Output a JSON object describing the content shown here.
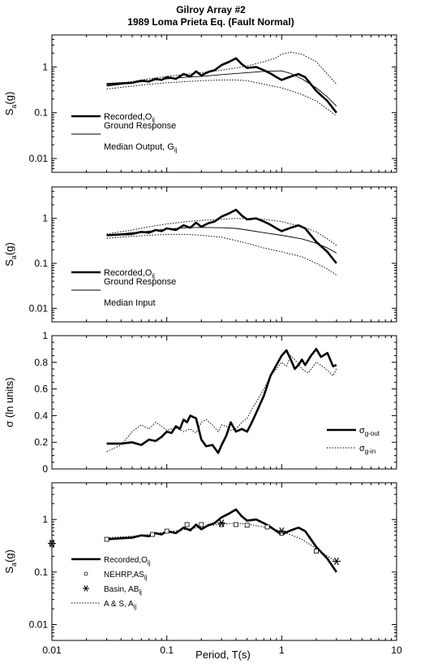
{
  "figure": {
    "title_line1": "Gilroy Array #2",
    "title_line2": "1989 Loma Prieta Eq. (Fault Normal)",
    "xlabel": "Period, T(s)",
    "x_ticks": [
      "0.01",
      "0.1",
      "1",
      "10"
    ]
  },
  "chart_data": [
    {
      "type": "line",
      "xscale": "log",
      "yscale": "log",
      "xlim": [
        0.01,
        10
      ],
      "ylim": [
        0.005,
        5
      ],
      "ylabel": "S",
      "ylabel_sub": "a",
      "ylabel_tail": "(g)",
      "y_ticks": [
        "0.01",
        "0.1",
        "1"
      ],
      "legend": [
        {
          "label": "Recorded,O",
          "sub": "ij",
          "style": "thick"
        },
        {
          "label": "Ground Response",
          "label2": "Median Output, G",
          "sub": "ij",
          "style": "thin"
        }
      ],
      "series": [
        {
          "name": "Recorded",
          "style": "thick",
          "x": [
            0.03,
            0.04,
            0.05,
            0.06,
            0.07,
            0.08,
            0.09,
            0.1,
            0.12,
            0.14,
            0.16,
            0.18,
            0.2,
            0.23,
            0.26,
            0.3,
            0.35,
            0.4,
            0.45,
            0.5,
            0.6,
            0.7,
            0.8,
            0.9,
            1.0,
            1.2,
            1.4,
            1.6,
            2.0,
            2.5,
            3.0
          ],
          "y": [
            0.42,
            0.44,
            0.45,
            0.5,
            0.48,
            0.55,
            0.52,
            0.6,
            0.55,
            0.7,
            0.62,
            0.8,
            0.65,
            0.78,
            0.85,
            1.1,
            1.3,
            1.55,
            1.15,
            0.95,
            1.0,
            0.85,
            0.72,
            0.6,
            0.52,
            0.62,
            0.7,
            0.6,
            0.3,
            0.18,
            0.1
          ]
        },
        {
          "name": "Median Output",
          "style": "thin",
          "x": [
            0.03,
            0.05,
            0.07,
            0.1,
            0.15,
            0.2,
            0.3,
            0.4,
            0.5,
            0.7,
            1.0,
            1.2,
            1.5,
            2.0,
            2.5,
            3.0
          ],
          "y": [
            0.38,
            0.45,
            0.5,
            0.55,
            0.6,
            0.62,
            0.68,
            0.72,
            0.75,
            0.8,
            0.82,
            0.72,
            0.55,
            0.35,
            0.22,
            0.14
          ]
        },
        {
          "name": "Output upper",
          "style": "dotted",
          "x": [
            0.03,
            0.05,
            0.07,
            0.1,
            0.15,
            0.2,
            0.3,
            0.4,
            0.5,
            0.7,
            0.9,
            1.0,
            1.2,
            1.5,
            2.0,
            2.5,
            3.0
          ],
          "y": [
            0.4,
            0.48,
            0.55,
            0.62,
            0.7,
            0.75,
            0.85,
            0.95,
            1.05,
            1.3,
            1.6,
            1.9,
            2.1,
            1.9,
            1.3,
            0.7,
            0.42
          ]
        },
        {
          "name": "Output lower",
          "style": "dotted",
          "x": [
            0.03,
            0.05,
            0.07,
            0.1,
            0.15,
            0.2,
            0.3,
            0.4,
            0.5,
            0.7,
            1.0,
            1.2,
            1.5,
            2.0,
            2.5,
            3.0
          ],
          "y": [
            0.33,
            0.38,
            0.42,
            0.45,
            0.48,
            0.5,
            0.52,
            0.52,
            0.5,
            0.42,
            0.35,
            0.3,
            0.25,
            0.18,
            0.12,
            0.085
          ]
        }
      ]
    },
    {
      "type": "line",
      "xscale": "log",
      "yscale": "log",
      "xlim": [
        0.01,
        10
      ],
      "ylim": [
        0.005,
        5
      ],
      "ylabel": "S",
      "ylabel_sub": "a",
      "ylabel_tail": "(g)",
      "y_ticks": [
        "0.01",
        "0.1",
        "1"
      ],
      "legend": [
        {
          "label": "Recorded,O",
          "sub": "ij",
          "style": "thick"
        },
        {
          "label": "Ground Response",
          "label2": "Median Input",
          "sub": "",
          "style": "thin"
        }
      ],
      "series": [
        {
          "name": "Recorded",
          "style": "thick",
          "x": [
            0.03,
            0.04,
            0.05,
            0.06,
            0.07,
            0.08,
            0.09,
            0.1,
            0.12,
            0.14,
            0.16,
            0.18,
            0.2,
            0.23,
            0.26,
            0.3,
            0.35,
            0.4,
            0.45,
            0.5,
            0.6,
            0.7,
            0.8,
            0.9,
            1.0,
            1.2,
            1.4,
            1.6,
            2.0,
            2.5,
            3.0
          ],
          "y": [
            0.42,
            0.44,
            0.45,
            0.5,
            0.48,
            0.55,
            0.52,
            0.6,
            0.55,
            0.7,
            0.62,
            0.8,
            0.65,
            0.78,
            0.85,
            1.1,
            1.3,
            1.55,
            1.15,
            0.95,
            1.0,
            0.85,
            0.72,
            0.6,
            0.52,
            0.62,
            0.7,
            0.6,
            0.3,
            0.18,
            0.1
          ]
        },
        {
          "name": "Median Input",
          "style": "thin",
          "x": [
            0.03,
            0.05,
            0.07,
            0.1,
            0.15,
            0.2,
            0.3,
            0.4,
            0.5,
            0.7,
            1.0,
            1.5,
            2.0,
            2.5,
            3.0
          ],
          "y": [
            0.42,
            0.48,
            0.52,
            0.58,
            0.62,
            0.63,
            0.62,
            0.6,
            0.55,
            0.48,
            0.42,
            0.35,
            0.28,
            0.22,
            0.17
          ]
        },
        {
          "name": "Input upper",
          "style": "dotted",
          "x": [
            0.03,
            0.05,
            0.07,
            0.1,
            0.15,
            0.2,
            0.3,
            0.4,
            0.5,
            0.7,
            1.0,
            1.5,
            2.0,
            2.5,
            3.0
          ],
          "y": [
            0.45,
            0.55,
            0.65,
            0.75,
            0.85,
            0.9,
            0.95,
            1.0,
            0.98,
            0.95,
            0.85,
            0.65,
            0.5,
            0.35,
            0.25
          ]
        },
        {
          "name": "Input lower",
          "style": "dotted",
          "x": [
            0.03,
            0.05,
            0.07,
            0.1,
            0.15,
            0.2,
            0.3,
            0.4,
            0.5,
            0.7,
            1.0,
            1.5,
            2.0,
            2.5,
            3.0
          ],
          "y": [
            0.36,
            0.4,
            0.42,
            0.44,
            0.44,
            0.42,
            0.38,
            0.32,
            0.28,
            0.22,
            0.18,
            0.14,
            0.1,
            0.075,
            0.055
          ]
        }
      ]
    },
    {
      "type": "line",
      "xscale": "log",
      "yscale": "linear",
      "xlim": [
        0.01,
        10
      ],
      "ylim": [
        0,
        1
      ],
      "ylabel": "σ (ln units)",
      "y_ticks": [
        "0",
        "0.2",
        "0.4",
        "0.6",
        "0.8",
        "1"
      ],
      "legend": [
        {
          "label": "σ",
          "sub": "g-out",
          "style": "thick"
        },
        {
          "label": "σ",
          "sub": "g-in",
          "style": "dotted"
        }
      ],
      "series": [
        {
          "name": "σ g-out",
          "style": "thick",
          "x": [
            0.03,
            0.04,
            0.05,
            0.06,
            0.07,
            0.08,
            0.09,
            0.1,
            0.11,
            0.12,
            0.13,
            0.14,
            0.15,
            0.16,
            0.18,
            0.2,
            0.22,
            0.25,
            0.28,
            0.3,
            0.33,
            0.36,
            0.4,
            0.45,
            0.5,
            0.55,
            0.6,
            0.7,
            0.8,
            0.9,
            1.0,
            1.1,
            1.2,
            1.3,
            1.4,
            1.5,
            1.6,
            1.8,
            2.0,
            2.2,
            2.5,
            2.8,
            3.0
          ],
          "y": [
            0.19,
            0.19,
            0.2,
            0.18,
            0.22,
            0.21,
            0.24,
            0.28,
            0.27,
            0.32,
            0.3,
            0.37,
            0.35,
            0.4,
            0.38,
            0.22,
            0.17,
            0.18,
            0.12,
            0.18,
            0.25,
            0.35,
            0.28,
            0.3,
            0.28,
            0.35,
            0.42,
            0.55,
            0.7,
            0.78,
            0.85,
            0.89,
            0.82,
            0.75,
            0.78,
            0.82,
            0.78,
            0.85,
            0.9,
            0.84,
            0.87,
            0.77,
            0.78
          ]
        },
        {
          "name": "σ g-in",
          "style": "dotted",
          "x": [
            0.03,
            0.04,
            0.05,
            0.06,
            0.07,
            0.08,
            0.09,
            0.1,
            0.12,
            0.14,
            0.16,
            0.18,
            0.2,
            0.22,
            0.25,
            0.28,
            0.3,
            0.33,
            0.36,
            0.4,
            0.45,
            0.5,
            0.55,
            0.6,
            0.7,
            0.8,
            0.9,
            1.0,
            1.1,
            1.2,
            1.3,
            1.5,
            1.7,
            2.0,
            2.2,
            2.5,
            2.8,
            3.0
          ],
          "y": [
            0.13,
            0.18,
            0.28,
            0.33,
            0.3,
            0.35,
            0.32,
            0.29,
            0.31,
            0.28,
            0.3,
            0.27,
            0.35,
            0.37,
            0.33,
            0.28,
            0.33,
            0.32,
            0.29,
            0.3,
            0.35,
            0.38,
            0.45,
            0.5,
            0.6,
            0.7,
            0.75,
            0.8,
            0.77,
            0.85,
            0.82,
            0.75,
            0.72,
            0.8,
            0.78,
            0.74,
            0.7,
            0.75
          ]
        }
      ]
    },
    {
      "type": "line",
      "xscale": "log",
      "yscale": "log",
      "xlim": [
        0.01,
        10
      ],
      "ylim": [
        0.005,
        5
      ],
      "ylabel": "S",
      "ylabel_sub": "a",
      "ylabel_tail": "(g)",
      "y_ticks": [
        "0.01",
        "0.1",
        "1"
      ],
      "legend": [
        {
          "label": "Recorded,O",
          "sub": "ij",
          "style": "thick"
        },
        {
          "label": "NEHRP,AS",
          "sub": "ij",
          "style": "square"
        },
        {
          "label": "Basin, AB",
          "sub": "ij",
          "style": "star"
        },
        {
          "label": "A & S, A",
          "sub": "ij",
          "style": "dotted"
        }
      ],
      "series": [
        {
          "name": "Recorded",
          "style": "thick",
          "x": [
            0.03,
            0.04,
            0.05,
            0.06,
            0.07,
            0.08,
            0.09,
            0.1,
            0.12,
            0.14,
            0.16,
            0.18,
            0.2,
            0.23,
            0.26,
            0.3,
            0.35,
            0.4,
            0.45,
            0.5,
            0.6,
            0.7,
            0.8,
            0.9,
            1.0,
            1.2,
            1.4,
            1.6,
            2.0,
            2.5,
            3.0
          ],
          "y": [
            0.42,
            0.44,
            0.45,
            0.5,
            0.48,
            0.55,
            0.52,
            0.6,
            0.55,
            0.7,
            0.62,
            0.8,
            0.65,
            0.78,
            0.85,
            1.1,
            1.3,
            1.55,
            1.15,
            0.95,
            1.0,
            0.85,
            0.72,
            0.6,
            0.52,
            0.62,
            0.7,
            0.6,
            0.3,
            0.18,
            0.1
          ]
        },
        {
          "name": "A & S",
          "style": "dotted",
          "x": [
            0.03,
            0.05,
            0.07,
            0.1,
            0.15,
            0.2,
            0.3,
            0.4,
            0.5,
            0.7,
            1.0,
            1.5,
            2.0,
            2.5,
            3.0
          ],
          "y": [
            0.45,
            0.48,
            0.52,
            0.58,
            0.65,
            0.72,
            0.82,
            0.85,
            0.82,
            0.72,
            0.6,
            0.42,
            0.28,
            0.2,
            0.16
          ]
        },
        {
          "name": "NEHRP",
          "style": "square",
          "x": [
            0.01,
            0.03,
            0.075,
            0.1,
            0.15,
            0.2,
            0.3,
            0.4,
            0.5,
            0.75,
            1.0,
            2.0
          ],
          "y": [
            0.35,
            0.42,
            0.52,
            0.6,
            0.8,
            0.8,
            0.8,
            0.8,
            0.78,
            0.72,
            0.55,
            0.25
          ]
        },
        {
          "name": "Basin",
          "style": "star",
          "x": [
            0.01,
            0.3,
            1.0,
            3.0
          ],
          "y": [
            0.35,
            0.85,
            0.6,
            0.16
          ]
        }
      ]
    }
  ]
}
